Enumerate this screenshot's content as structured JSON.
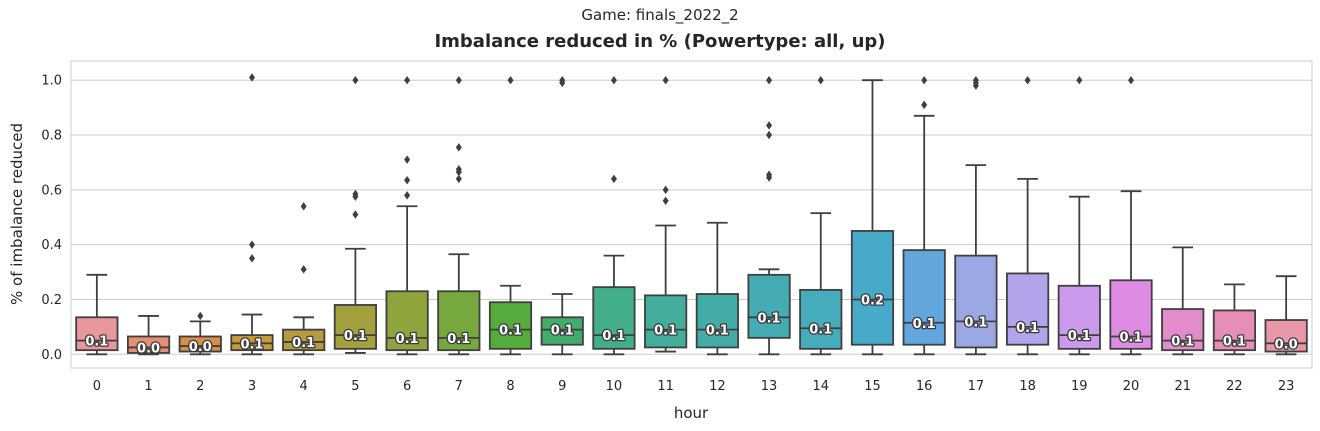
{
  "suptitle": "Game: finals_2022_2",
  "chart_data": {
    "type": "box",
    "title": "Imbalance reduced in % (Powertype: all, up)",
    "xlabel": "hour",
    "ylabel": "% of imbalance reduced",
    "ylim": [
      -0.05,
      1.07
    ],
    "yticks": [
      "0.0",
      "0.2",
      "0.4",
      "0.6",
      "0.8",
      "1.0"
    ],
    "grid": true,
    "categories": [
      "0",
      "1",
      "2",
      "3",
      "4",
      "5",
      "6",
      "7",
      "8",
      "9",
      "10",
      "11",
      "12",
      "13",
      "14",
      "15",
      "16",
      "17",
      "18",
      "19",
      "20",
      "21",
      "22",
      "23"
    ],
    "boxes": [
      {
        "q1": 0.015,
        "median": 0.05,
        "q3": 0.135,
        "whislo": 0.0,
        "whishi": 0.29,
        "fliers": [],
        "color": "#e8979f",
        "label": "0.1"
      },
      {
        "q1": 0.005,
        "median": 0.025,
        "q3": 0.065,
        "whislo": 0.0,
        "whishi": 0.14,
        "fliers": [],
        "color": "#e59070",
        "label": "0.0"
      },
      {
        "q1": 0.01,
        "median": 0.03,
        "q3": 0.065,
        "whislo": 0.0,
        "whishi": 0.12,
        "fliers": [
          0.14
        ],
        "color": "#d98d48",
        "label": "0.0"
      },
      {
        "q1": 0.015,
        "median": 0.04,
        "q3": 0.07,
        "whislo": 0.0,
        "whishi": 0.145,
        "fliers": [
          0.35,
          0.4,
          1.01
        ],
        "color": "#c79a3a",
        "label": "0.1"
      },
      {
        "q1": 0.015,
        "median": 0.045,
        "q3": 0.09,
        "whislo": 0.0,
        "whishi": 0.135,
        "fliers": [
          0.31,
          0.54
        ],
        "color": "#b49b3d",
        "label": "0.1"
      },
      {
        "q1": 0.02,
        "median": 0.07,
        "q3": 0.18,
        "whislo": 0.005,
        "whishi": 0.385,
        "fliers": [
          0.51,
          0.575,
          0.585,
          1.0
        ],
        "color": "#a4a03d",
        "label": "0.1"
      },
      {
        "q1": 0.015,
        "median": 0.06,
        "q3": 0.23,
        "whislo": 0.0,
        "whishi": 0.54,
        "fliers": [
          0.58,
          0.635,
          0.71,
          1.0
        ],
        "color": "#8ea43c",
        "label": "0.1"
      },
      {
        "q1": 0.015,
        "median": 0.06,
        "q3": 0.23,
        "whislo": 0.0,
        "whishi": 0.365,
        "fliers": [
          0.64,
          0.665,
          0.675,
          0.755,
          1.0
        ],
        "color": "#76a83d",
        "label": "0.1"
      },
      {
        "q1": 0.02,
        "median": 0.09,
        "q3": 0.19,
        "whislo": 0.0,
        "whishi": 0.25,
        "fliers": [
          1.0
        ],
        "color": "#55ab3c",
        "label": "0.1"
      },
      {
        "q1": 0.035,
        "median": 0.09,
        "q3": 0.135,
        "whislo": 0.0,
        "whishi": 0.22,
        "fliers": [
          0.99,
          1.0
        ],
        "color": "#41ad6a",
        "label": "0.1"
      },
      {
        "q1": 0.02,
        "median": 0.07,
        "q3": 0.245,
        "whislo": 0.0,
        "whishi": 0.36,
        "fliers": [
          0.64,
          1.0
        ],
        "color": "#43ae8a",
        "label": "0.1"
      },
      {
        "q1": 0.025,
        "median": 0.09,
        "q3": 0.215,
        "whislo": 0.01,
        "whishi": 0.47,
        "fliers": [
          0.56,
          0.6,
          1.0
        ],
        "color": "#44ad9b",
        "label": "0.1"
      },
      {
        "q1": 0.025,
        "median": 0.09,
        "q3": 0.22,
        "whislo": 0.0,
        "whishi": 0.48,
        "fliers": [],
        "color": "#44aca7",
        "label": "0.1"
      },
      {
        "q1": 0.06,
        "median": 0.135,
        "q3": 0.29,
        "whislo": 0.0,
        "whishi": 0.31,
        "fliers": [
          0.645,
          0.655,
          0.8,
          0.835,
          1.0
        ],
        "color": "#44acb2",
        "label": "0.1"
      },
      {
        "q1": 0.02,
        "median": 0.095,
        "q3": 0.235,
        "whislo": 0.0,
        "whishi": 0.515,
        "fliers": [
          1.0
        ],
        "color": "#45acbd",
        "label": "0.1"
      },
      {
        "q1": 0.035,
        "median": 0.2,
        "q3": 0.45,
        "whislo": 0.0,
        "whishi": 1.0,
        "fliers": [],
        "color": "#47aac9",
        "label": "0.2"
      },
      {
        "q1": 0.035,
        "median": 0.115,
        "q3": 0.38,
        "whislo": 0.0,
        "whishi": 0.87,
        "fliers": [
          0.91,
          1.0
        ],
        "color": "#62a6de",
        "label": "0.1"
      },
      {
        "q1": 0.025,
        "median": 0.12,
        "q3": 0.36,
        "whislo": 0.0,
        "whishi": 0.69,
        "fliers": [
          0.98,
          0.99,
          1.0
        ],
        "color": "#9ca8e4",
        "label": "0.1"
      },
      {
        "q1": 0.035,
        "median": 0.1,
        "q3": 0.295,
        "whislo": 0.0,
        "whishi": 0.64,
        "fliers": [
          1.0
        ],
        "color": "#b4a3ea",
        "label": "0.1"
      },
      {
        "q1": 0.02,
        "median": 0.07,
        "q3": 0.25,
        "whislo": 0.0,
        "whishi": 0.575,
        "fliers": [
          1.0
        ],
        "color": "#cc9aed",
        "label": "0.1"
      },
      {
        "q1": 0.02,
        "median": 0.065,
        "q3": 0.27,
        "whislo": 0.0,
        "whishi": 0.595,
        "fliers": [
          1.0
        ],
        "color": "#de8be3",
        "label": "0.1"
      },
      {
        "q1": 0.015,
        "median": 0.05,
        "q3": 0.165,
        "whislo": 0.0,
        "whishi": 0.39,
        "fliers": [],
        "color": "#e38ccb",
        "label": "0.1"
      },
      {
        "q1": 0.015,
        "median": 0.05,
        "q3": 0.16,
        "whislo": 0.0,
        "whishi": 0.255,
        "fliers": [],
        "color": "#e58fb8",
        "label": "0.1"
      },
      {
        "q1": 0.01,
        "median": 0.04,
        "q3": 0.125,
        "whislo": 0.0,
        "whishi": 0.285,
        "fliers": [],
        "color": "#e897a9",
        "label": "0.0"
      }
    ]
  }
}
